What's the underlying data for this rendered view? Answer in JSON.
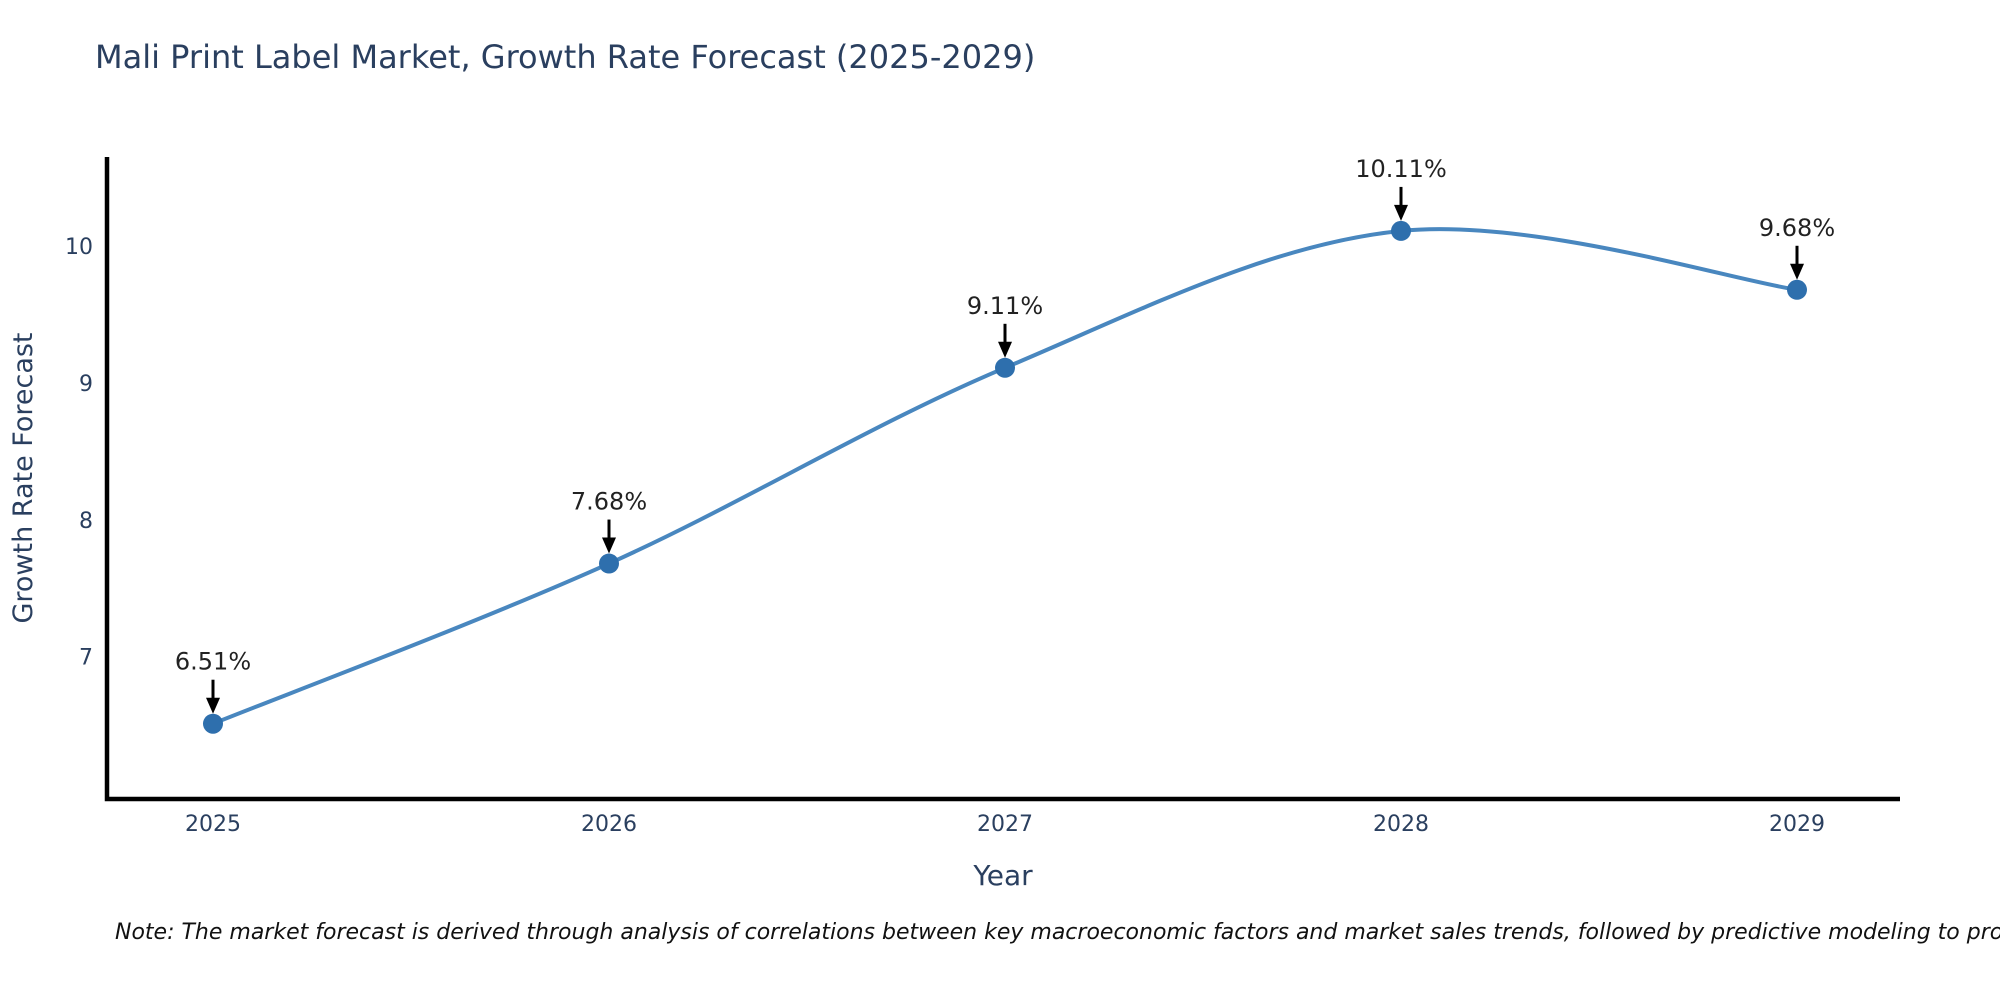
{
  "chart_data": {
    "type": "line",
    "title": "Mali Print Label Market, Growth Rate Forecast (2025-2029)",
    "xlabel": "Year",
    "ylabel": "Growth Rate Forecast",
    "categories": [
      "2025",
      "2026",
      "2027",
      "2028",
      "2029"
    ],
    "x": [
      2025,
      2026,
      2027,
      2028,
      2029
    ],
    "series": [
      {
        "name": "Growth Rate Forecast",
        "values": [
          6.51,
          7.68,
          9.11,
          10.11,
          9.68
        ],
        "point_labels": [
          "6.51%",
          "7.68%",
          "9.11%",
          "10.11%",
          "9.68%"
        ]
      }
    ],
    "yticks": [
      7,
      8,
      9,
      10
    ],
    "ylim": [
      5.96,
      10.65
    ],
    "grid": false,
    "legend_position": "none",
    "curve": "spline",
    "colors": {
      "line": "#4987bf",
      "marker": "#2e6fad",
      "axis_line": "#000000",
      "axis_text": "#2a3f5f",
      "annotation_text": "#222222",
      "annotation_arrow": "#000000",
      "note_text": "#111111",
      "background": "#ffffff"
    },
    "note": "Note: The market forecast is derived through analysis of correlations between key macroeconomic factors and market sales trends, followed by predictive modeling to project future sales"
  }
}
